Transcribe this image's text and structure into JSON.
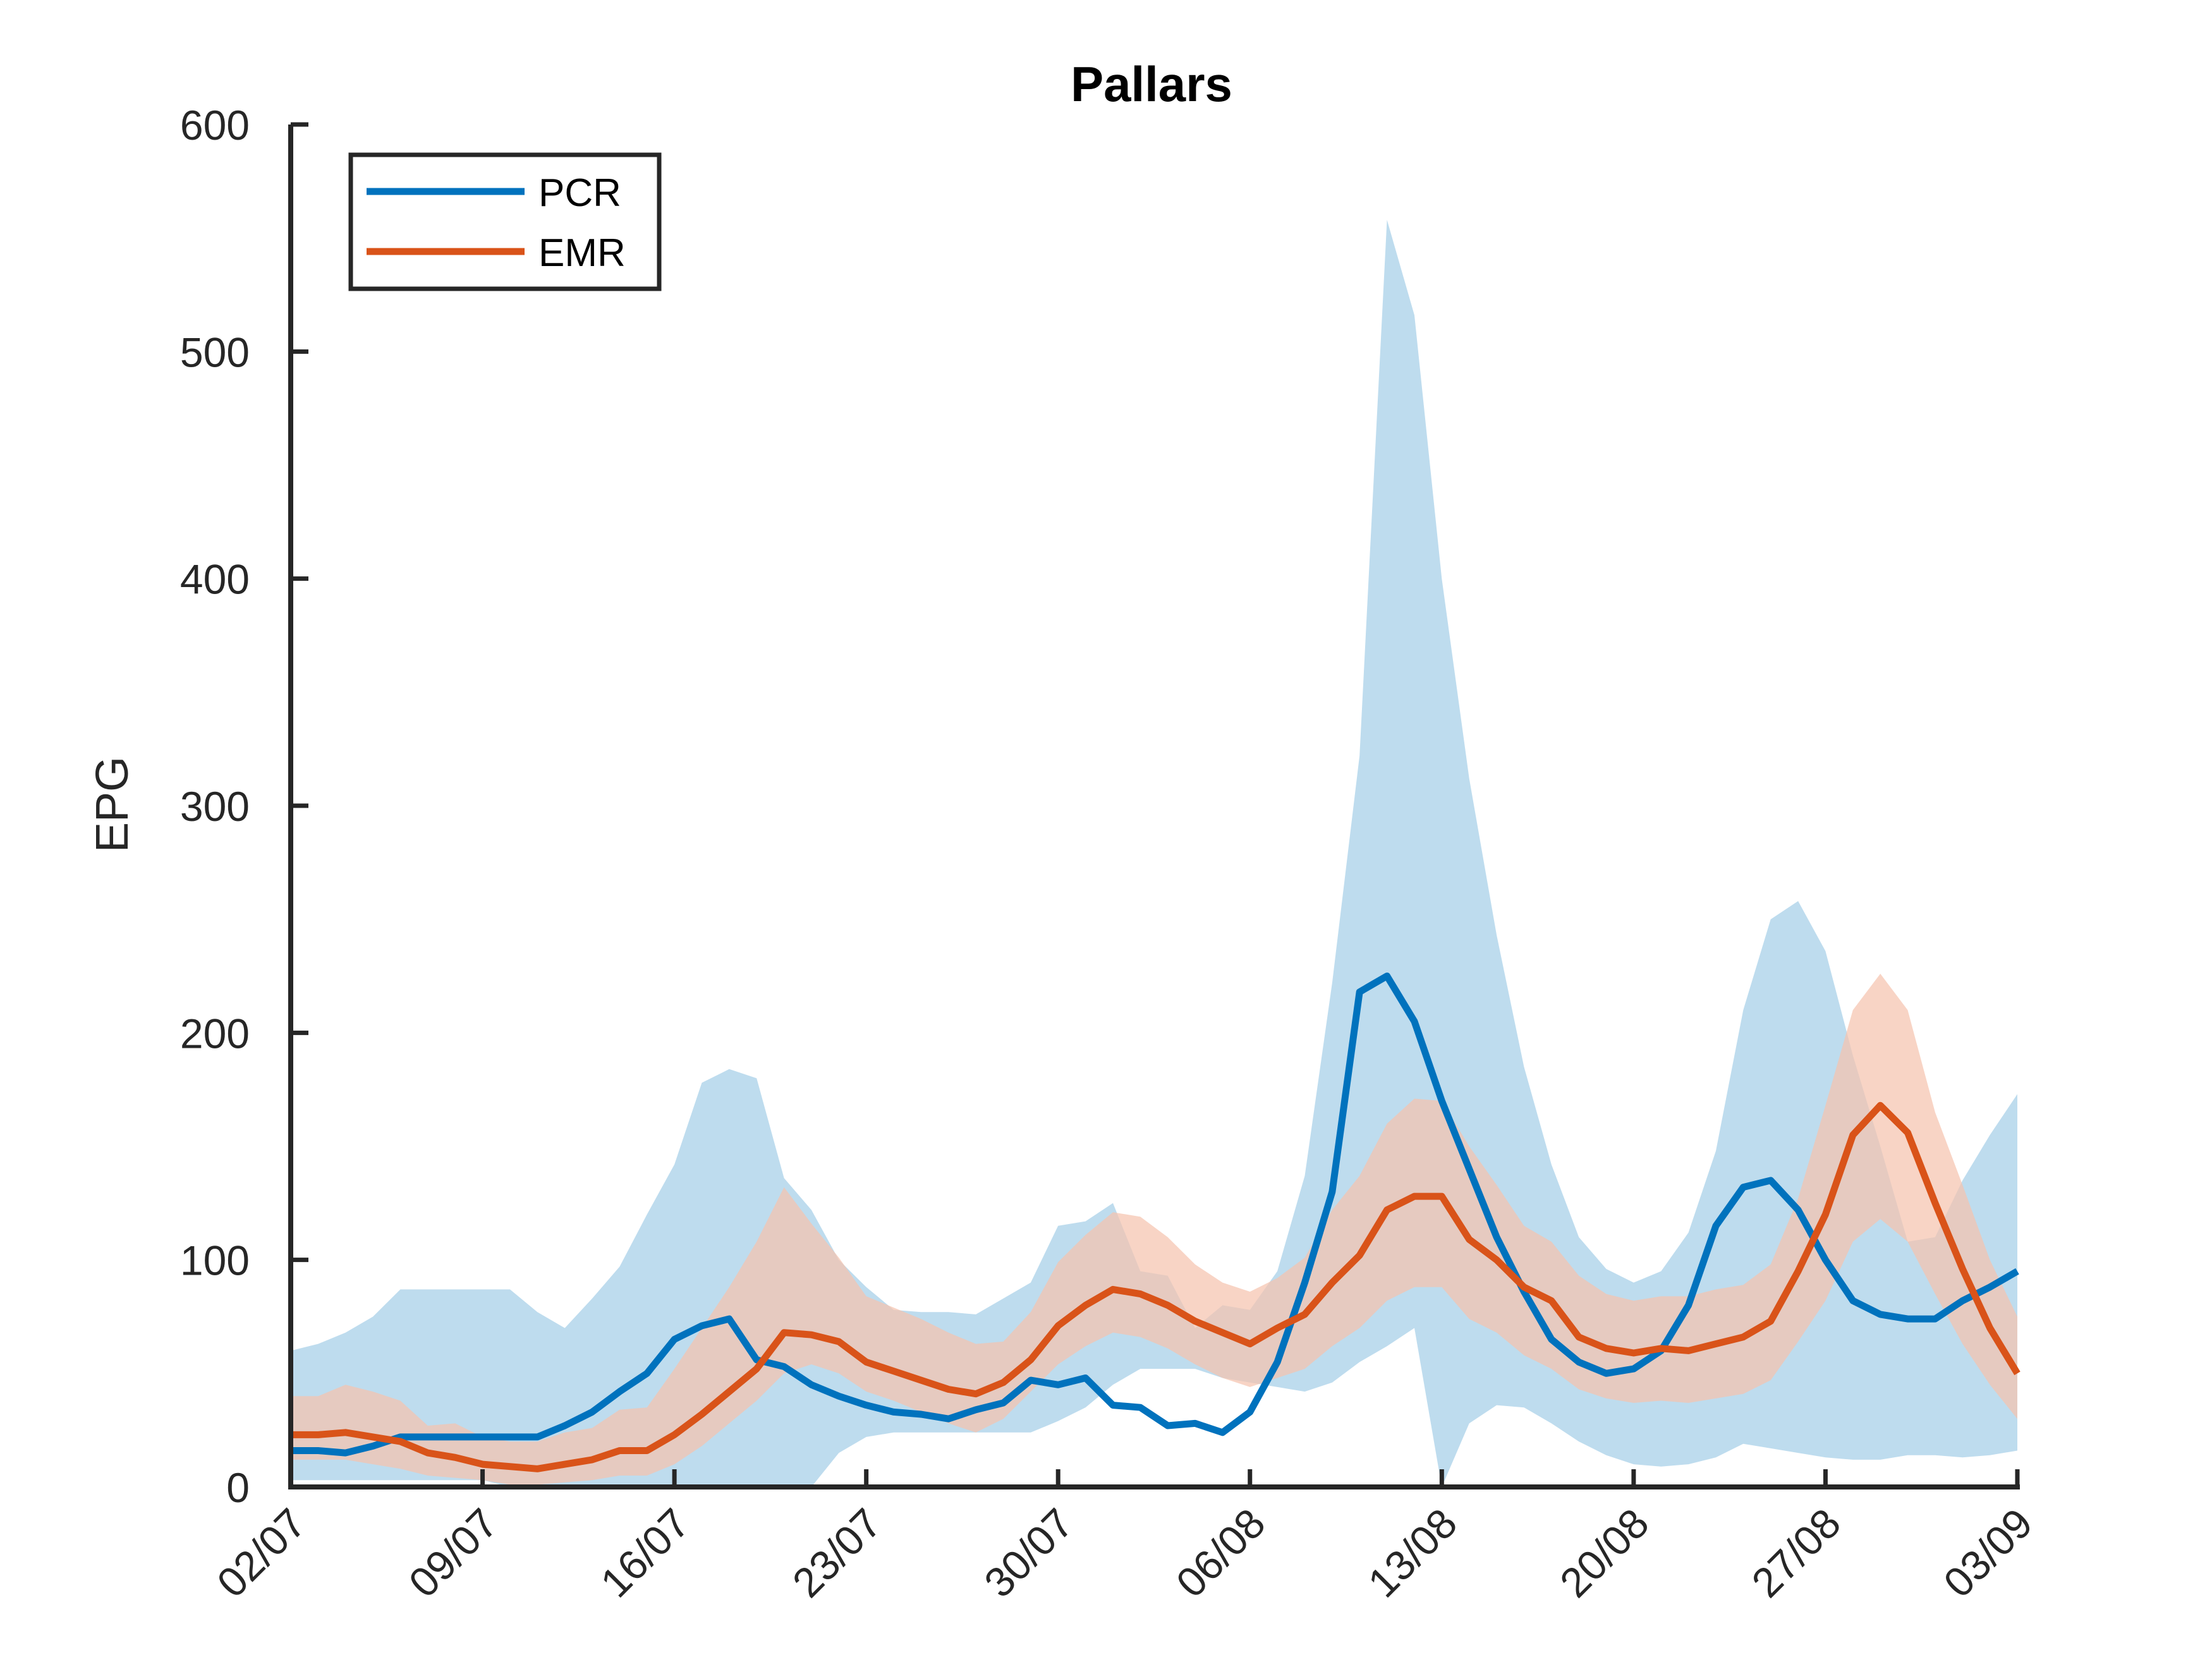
{
  "chart_data": {
    "type": "line",
    "title": "Pallars",
    "xlabel": "",
    "ylabel": "EPG",
    "ylim": [
      0,
      600
    ],
    "yticks": [
      0,
      100,
      200,
      300,
      400,
      500,
      600
    ],
    "xlim": [
      "2020-07-02",
      "2020-09-03"
    ],
    "x_tick_labels": [
      "02/07",
      "09/07",
      "16/07",
      "23/07",
      "30/07",
      "06/08",
      "13/08",
      "20/08",
      "27/08",
      "03/09"
    ],
    "grid": false,
    "legend_position": "top-left",
    "x": [
      "2020-07-02",
      "2020-07-03",
      "2020-07-04",
      "2020-07-05",
      "2020-07-06",
      "2020-07-07",
      "2020-07-08",
      "2020-07-09",
      "2020-07-10",
      "2020-07-11",
      "2020-07-12",
      "2020-07-13",
      "2020-07-14",
      "2020-07-15",
      "2020-07-16",
      "2020-07-17",
      "2020-07-18",
      "2020-07-19",
      "2020-07-20",
      "2020-07-21",
      "2020-07-22",
      "2020-07-23",
      "2020-07-24",
      "2020-07-25",
      "2020-07-26",
      "2020-07-27",
      "2020-07-28",
      "2020-07-29",
      "2020-07-30",
      "2020-07-31",
      "2020-08-01",
      "2020-08-02",
      "2020-08-03",
      "2020-08-04",
      "2020-08-05",
      "2020-08-06",
      "2020-08-07",
      "2020-08-08",
      "2020-08-09",
      "2020-08-10",
      "2020-08-11",
      "2020-08-12",
      "2020-08-13",
      "2020-08-14",
      "2020-08-15",
      "2020-08-16",
      "2020-08-17",
      "2020-08-18",
      "2020-08-19",
      "2020-08-20",
      "2020-08-21",
      "2020-08-22",
      "2020-08-23",
      "2020-08-24",
      "2020-08-25",
      "2020-08-26",
      "2020-08-27",
      "2020-08-28",
      "2020-08-29",
      "2020-08-30",
      "2020-08-31",
      "2020-09-01",
      "2020-09-02",
      "2020-09-03"
    ],
    "series": [
      {
        "name": "PCR",
        "color": "#0072BD",
        "band_color": "#BEDCEE",
        "values": [
          16,
          16,
          15,
          18,
          22,
          22,
          22,
          22,
          22,
          22,
          27,
          33,
          42,
          50,
          65,
          71,
          74,
          56,
          53,
          45,
          40,
          36,
          33,
          32,
          30,
          34,
          37,
          47,
          45,
          48,
          36,
          35,
          27,
          28,
          24,
          33,
          55,
          90,
          130,
          218,
          225,
          205,
          170,
          140,
          110,
          86,
          65,
          55,
          50,
          52,
          60,
          80,
          115,
          132,
          135,
          122,
          100,
          82,
          76,
          74,
          74,
          82,
          88,
          95
        ],
        "band_upper": [
          60,
          63,
          68,
          75,
          87,
          87,
          87,
          87,
          87,
          77,
          70,
          83,
          97,
          120,
          142,
          178,
          184,
          180,
          136,
          122,
          100,
          88,
          78,
          77,
          77,
          76,
          83,
          90,
          115,
          117,
          125,
          95,
          93,
          70,
          80,
          78,
          95,
          137,
          222,
          322,
          558,
          516,
          400,
          312,
          243,
          185,
          142,
          110,
          96,
          90,
          95,
          112,
          148,
          210,
          250,
          258,
          236,
          190,
          150,
          108,
          110,
          135,
          155,
          173
        ],
        "band_lower": [
          3,
          3,
          3,
          3,
          3,
          3,
          3,
          3,
          0,
          0,
          0,
          0,
          0,
          0,
          0,
          0,
          0,
          0,
          0,
          0,
          15,
          22,
          24,
          24,
          24,
          24,
          24,
          24,
          29,
          35,
          45,
          52,
          52,
          52,
          48,
          46,
          44,
          42,
          46,
          55,
          62,
          70,
          0,
          28,
          36,
          35,
          28,
          20,
          14,
          10,
          9,
          10,
          13,
          19,
          17,
          15,
          13,
          12,
          12,
          14,
          14,
          13,
          14,
          16
        ]
      },
      {
        "name": "EMR",
        "color": "#D95319",
        "band_color": "#F5C4AE",
        "values": [
          23,
          23,
          24,
          22,
          20,
          15,
          13,
          10,
          9,
          8,
          10,
          12,
          16,
          16,
          23,
          32,
          42,
          52,
          68,
          67,
          64,
          55,
          51,
          47,
          43,
          41,
          46,
          56,
          71,
          80,
          87,
          85,
          80,
          73,
          68,
          63,
          70,
          76,
          90,
          102,
          122,
          128,
          128,
          109,
          100,
          88,
          82,
          66,
          61,
          59,
          61,
          60,
          63,
          66,
          73,
          95,
          120,
          155,
          168,
          156,
          125,
          96,
          70,
          50
        ],
        "band_upper": [
          40,
          40,
          45,
          42,
          38,
          27,
          28,
          22,
          20,
          20,
          24,
          26,
          34,
          35,
          52,
          70,
          88,
          108,
          132,
          116,
          101,
          84,
          79,
          74,
          68,
          63,
          64,
          77,
          99,
          111,
          121,
          119,
          110,
          98,
          90,
          86,
          92,
          101,
          122,
          137,
          160,
          171,
          170,
          150,
          133,
          115,
          108,
          93,
          85,
          82,
          84,
          84,
          87,
          89,
          98,
          127,
          168,
          210,
          226,
          210,
          165,
          133,
          100,
          75
        ],
        "band_lower": [
          12,
          12,
          12,
          10,
          8,
          5,
          4,
          3,
          1,
          1,
          2,
          3,
          5,
          5,
          10,
          18,
          28,
          38,
          50,
          54,
          50,
          42,
          38,
          33,
          28,
          24,
          30,
          42,
          54,
          62,
          68,
          66,
          61,
          54,
          48,
          44,
          48,
          52,
          62,
          70,
          82,
          88,
          88,
          74,
          68,
          58,
          52,
          43,
          39,
          37,
          38,
          37,
          39,
          41,
          47,
          64,
          82,
          108,
          118,
          108,
          85,
          63,
          45,
          30
        ]
      }
    ]
  }
}
